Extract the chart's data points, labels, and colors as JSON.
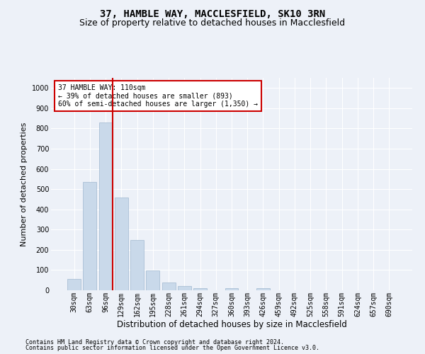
{
  "title1": "37, HAMBLE WAY, MACCLESFIELD, SK10 3RN",
  "title2": "Size of property relative to detached houses in Macclesfield",
  "xlabel": "Distribution of detached houses by size in Macclesfield",
  "ylabel": "Number of detached properties",
  "footnote1": "Contains HM Land Registry data © Crown copyright and database right 2024.",
  "footnote2": "Contains public sector information licensed under the Open Government Licence v3.0.",
  "categories": [
    "30sqm",
    "63sqm",
    "96sqm",
    "129sqm",
    "162sqm",
    "195sqm",
    "228sqm",
    "261sqm",
    "294sqm",
    "327sqm",
    "360sqm",
    "393sqm",
    "426sqm",
    "459sqm",
    "492sqm",
    "525sqm",
    "558sqm",
    "591sqm",
    "624sqm",
    "657sqm",
    "690sqm"
  ],
  "values": [
    55,
    535,
    830,
    460,
    248,
    98,
    38,
    22,
    10,
    0,
    10,
    0,
    10,
    0,
    0,
    0,
    0,
    0,
    0,
    0,
    0
  ],
  "bar_color": "#c9d9ea",
  "bar_edge_color": "#a0b8d0",
  "vline_color": "#cc0000",
  "annotation_text": "37 HAMBLE WAY: 110sqm\n← 39% of detached houses are smaller (893)\n60% of semi-detached houses are larger (1,350) →",
  "annotation_box_color": "#ffffff",
  "annotation_box_edge": "#cc0000",
  "ylim": [
    0,
    1050
  ],
  "yticks": [
    0,
    100,
    200,
    300,
    400,
    500,
    600,
    700,
    800,
    900,
    1000
  ],
  "bg_color": "#edf1f8",
  "axes_bg_color": "#edf1f8",
  "grid_color": "#ffffff",
  "title_fontsize": 10,
  "subtitle_fontsize": 9,
  "tick_fontsize": 7,
  "ylabel_fontsize": 8,
  "xlabel_fontsize": 8.5,
  "footnote_fontsize": 6
}
